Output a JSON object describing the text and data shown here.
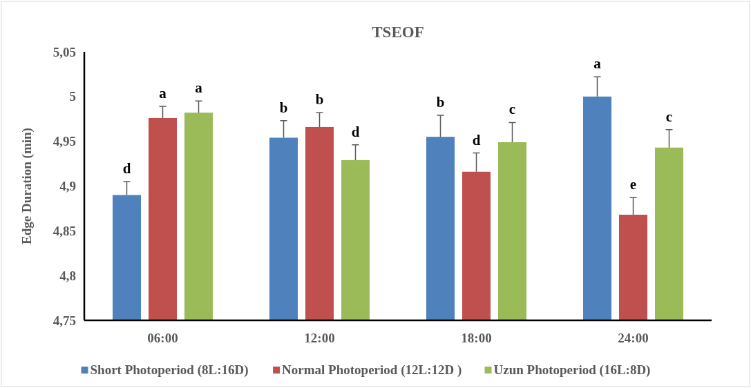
{
  "chart_data": {
    "type": "bar",
    "title": "TSEOF",
    "ylabel": "Edge Duration (min)",
    "categories": [
      "06:00",
      "12:00",
      "18:00",
      "24:00"
    ],
    "series": [
      {
        "name": "Short Photoperiod (8L:16D)",
        "color": "#4f81bd",
        "values": [
          4.89,
          4.954,
          4.955,
          5.0
        ],
        "errors": [
          [
            4.89,
            4.905
          ],
          [
            4.954,
            4.973
          ],
          [
            4.955,
            4.979
          ],
          [
            5.0,
            5.022
          ]
        ],
        "value_labels": [
          "d",
          "b",
          "b",
          "a"
        ]
      },
      {
        "name": "Normal Photoperiod (12L:12D )",
        "color": "#c0504d",
        "values": [
          4.976,
          4.966,
          4.916,
          4.868
        ],
        "errors": [
          [
            4.976,
            4.989
          ],
          [
            4.966,
            4.982
          ],
          [
            4.916,
            4.937
          ],
          [
            4.868,
            4.887
          ]
        ],
        "value_labels": [
          "a",
          "b",
          "d",
          "e"
        ]
      },
      {
        "name": "Uzun Photoperiod (16L:8D)",
        "color": "#9bbb59",
        "values": [
          4.982,
          4.929,
          4.949,
          4.943
        ],
        "errors": [
          [
            4.982,
            4.995
          ],
          [
            4.929,
            4.946
          ],
          [
            4.949,
            4.971
          ],
          [
            4.943,
            4.963
          ]
        ],
        "value_labels": [
          "a",
          "d",
          "c",
          "c"
        ]
      }
    ],
    "ylim": [
      4.75,
      5.05
    ],
    "yticks": [
      {
        "value": 4.75,
        "label": "4,75"
      },
      {
        "value": 4.8,
        "label": "4,8"
      },
      {
        "value": 4.85,
        "label": "4,85"
      },
      {
        "value": 4.9,
        "label": "4,9"
      },
      {
        "value": 4.95,
        "label": "4,95"
      },
      {
        "value": 5,
        "label": "5"
      },
      {
        "value": 5.05,
        "label": "5,05"
      }
    ],
    "grid": false,
    "legend": "bottom"
  }
}
